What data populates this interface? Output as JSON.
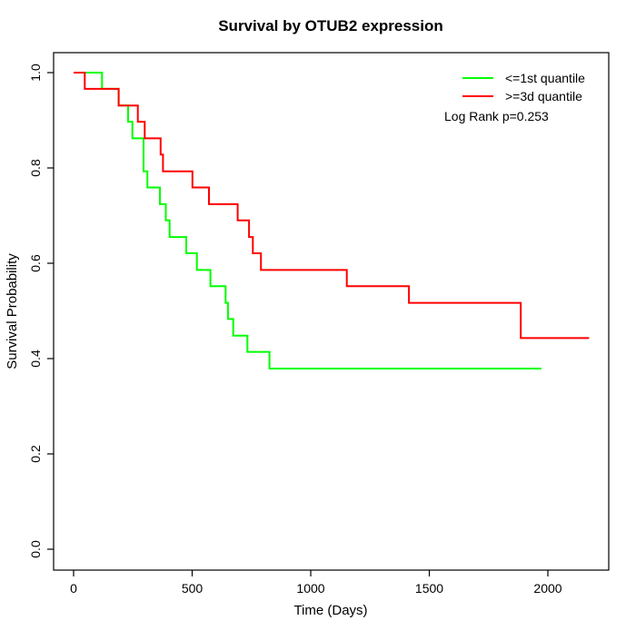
{
  "title": "Survival by OTUB2 expression",
  "axes": {
    "x": {
      "label": "Time (Days)",
      "ticks": [
        {
          "v": 0,
          "label": "0"
        },
        {
          "v": 500,
          "label": "500"
        },
        {
          "v": 1000,
          "label": "1000"
        },
        {
          "v": 1500,
          "label": "1500"
        },
        {
          "v": 2000,
          "label": "2000"
        }
      ]
    },
    "y": {
      "label": "Survival Probability",
      "ticks": [
        {
          "v": 0.0,
          "label": "0.0"
        },
        {
          "v": 0.2,
          "label": "0.2"
        },
        {
          "v": 0.4,
          "label": "0.4"
        },
        {
          "v": 0.6,
          "label": "0.6"
        },
        {
          "v": 0.8,
          "label": "0.8"
        },
        {
          "v": 1.0,
          "label": "1.0"
        }
      ]
    }
  },
  "legend": {
    "entries": [
      {
        "label": "<=1st quantile",
        "color": "#00ff00"
      },
      {
        "label": ">=3d quantile",
        "color": "#ff0000"
      }
    ],
    "note": "Log Rank p=0.253"
  },
  "chart_data": {
    "type": "line",
    "subtype": "kaplan-meier-step",
    "title": "Survival by OTUB2 expression",
    "xlabel": "Time (Days)",
    "ylabel": "Survival Probability",
    "xlim": [
      0,
      2200
    ],
    "ylim": [
      0,
      1
    ],
    "grid": false,
    "legend_position": "top-right",
    "annotation": "Log Rank p=0.253",
    "series": [
      {
        "name": "<=1st quantile",
        "color": "#00ff00",
        "points": [
          [
            0,
            1.0
          ],
          [
            120,
            0.966
          ],
          [
            190,
            0.931
          ],
          [
            230,
            0.897
          ],
          [
            248,
            0.862
          ],
          [
            295,
            0.793
          ],
          [
            311,
            0.759
          ],
          [
            364,
            0.724
          ],
          [
            389,
            0.69
          ],
          [
            405,
            0.655
          ],
          [
            475,
            0.621
          ],
          [
            520,
            0.586
          ],
          [
            577,
            0.552
          ],
          [
            641,
            0.517
          ],
          [
            651,
            0.483
          ],
          [
            673,
            0.448
          ],
          [
            733,
            0.414
          ],
          [
            826,
            0.379
          ]
        ],
        "end_time": 1973
      },
      {
        "name": ">=3d quantile",
        "color": "#ff0000",
        "points": [
          [
            0,
            1.0
          ],
          [
            47,
            0.966
          ],
          [
            190,
            0.931
          ],
          [
            271,
            0.897
          ],
          [
            300,
            0.862
          ],
          [
            367,
            0.828
          ],
          [
            377,
            0.793
          ],
          [
            501,
            0.759
          ],
          [
            571,
            0.724
          ],
          [
            692,
            0.69
          ],
          [
            740,
            0.655
          ],
          [
            756,
            0.621
          ],
          [
            790,
            0.586
          ],
          [
            1152,
            0.552
          ],
          [
            1414,
            0.517
          ],
          [
            1886,
            0.443
          ]
        ],
        "end_time": 2174
      }
    ]
  }
}
